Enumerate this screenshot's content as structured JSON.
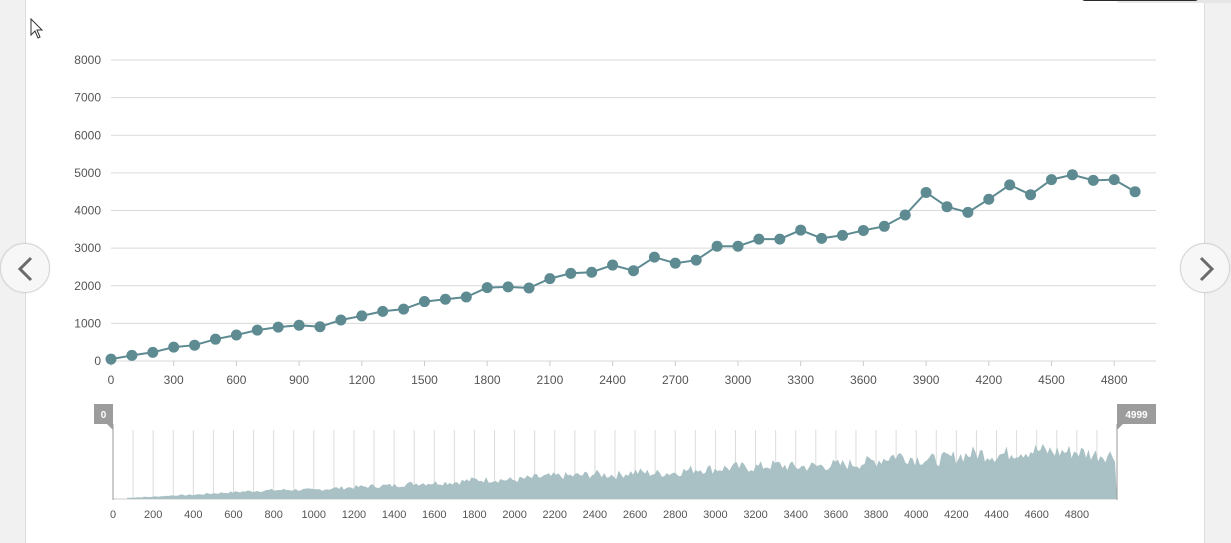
{
  "chart_data": [
    {
      "type": "line",
      "title": "",
      "xlabel": "",
      "ylabel": "",
      "xlim": [
        0,
        5000
      ],
      "ylim": [
        0,
        8000
      ],
      "x_ticks": [
        0,
        300,
        600,
        900,
        1200,
        1500,
        1800,
        2100,
        2400,
        2700,
        3000,
        3300,
        3600,
        3900,
        4200,
        4500,
        4800
      ],
      "y_ticks": [
        0,
        1000,
        2000,
        3000,
        4000,
        5000,
        6000,
        7000,
        8000
      ],
      "grid": "horizontal",
      "color": "#5e8a92",
      "series": [
        {
          "x": [
            0,
            100,
            200,
            300,
            400,
            500,
            600,
            700,
            800,
            900,
            1000,
            1100,
            1200,
            1300,
            1400,
            1500,
            1600,
            1700,
            1800,
            1900,
            2000,
            2100,
            2200,
            2300,
            2400,
            2500,
            2600,
            2700,
            2800,
            2900,
            3000,
            3100,
            3200,
            3300,
            3400,
            3500,
            3600,
            3700,
            3800,
            3900,
            4000,
            4100,
            4200,
            4300,
            4400,
            4500,
            4600,
            4700,
            4800,
            4900
          ],
          "values": [
            50,
            150,
            230,
            370,
            420,
            580,
            690,
            820,
            900,
            950,
            910,
            1090,
            1200,
            1320,
            1380,
            1580,
            1640,
            1700,
            1950,
            1970,
            1940,
            2190,
            2330,
            2360,
            2550,
            2400,
            2760,
            2600,
            2680,
            3050,
            3050,
            3240,
            3240,
            3480,
            3260,
            3340,
            3470,
            3580,
            3880,
            4480,
            4100,
            3950,
            4300,
            4680,
            4420,
            4820,
            4950,
            4800,
            4820,
            4500
          ]
        }
      ]
    },
    {
      "type": "area",
      "title": "",
      "xlim": [
        0,
        5000
      ],
      "x_ticks": [
        0,
        200,
        400,
        600,
        800,
        1000,
        1200,
        1400,
        1600,
        1800,
        2000,
        2200,
        2400,
        2600,
        2800,
        3000,
        3200,
        3400,
        3600,
        3800,
        4000,
        4200,
        4400,
        4600,
        4800
      ],
      "color": "#a9c0c4",
      "range_handles": {
        "start": "0",
        "end": "4999"
      }
    }
  ],
  "navigation": {
    "prev_icon": "chevron-left-icon",
    "next_icon": "chevron-right-icon"
  }
}
